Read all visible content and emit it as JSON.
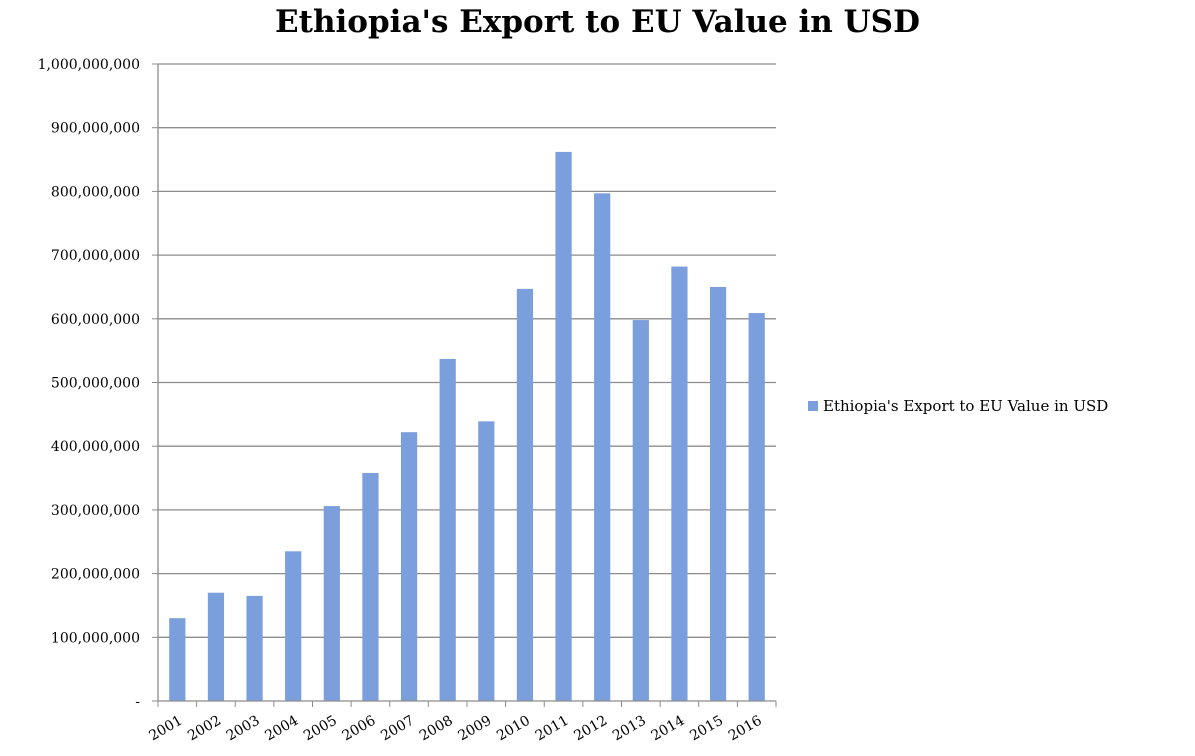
{
  "chart_data": {
    "type": "bar",
    "title": "Ethiopia's Export to EU Value in USD",
    "xlabel": "",
    "ylabel": "",
    "categories": [
      "2001",
      "2002",
      "2003",
      "2004",
      "2005",
      "2006",
      "2007",
      "2008",
      "2009",
      "2010",
      "2011",
      "2012",
      "2013",
      "2014",
      "2015",
      "2016"
    ],
    "series": [
      {
        "name": "Ethiopia's Export to EU Value in USD",
        "values": [
          130000000,
          170000000,
          165000000,
          235000000,
          306000000,
          358000000,
          422000000,
          537000000,
          439000000,
          647000000,
          862000000,
          797000000,
          598000000,
          682000000,
          650000000,
          609000000
        ]
      }
    ],
    "ylim": [
      0,
      1000000000
    ],
    "yticks": [
      0,
      100000000,
      200000000,
      300000000,
      400000000,
      500000000,
      600000000,
      700000000,
      800000000,
      900000000,
      1000000000
    ],
    "ytick_labels": [
      "-",
      "100,000,000",
      "200,000,000",
      "300,000,000",
      "400,000,000",
      "500,000,000",
      "600,000,000",
      "700,000,000",
      "800,000,000",
      "900,000,000",
      "1,000,000,000"
    ],
    "grid": true,
    "legend_position": "right",
    "colors": {
      "bar": "#7b9fdc",
      "grid": "#8c8c8c",
      "axis": "#8c8c8c"
    }
  }
}
